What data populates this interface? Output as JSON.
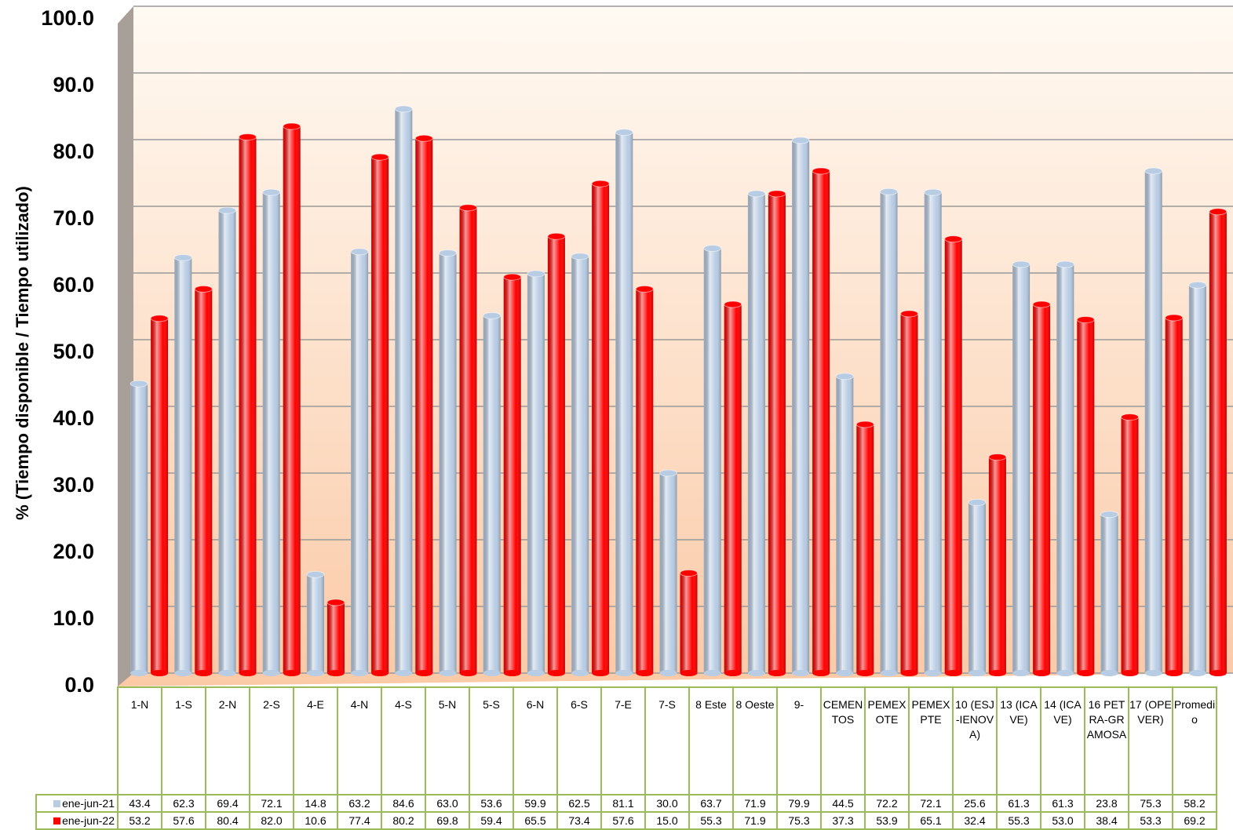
{
  "chart_data": {
    "type": "bar",
    "y_label": "% (Tiempo disponible / Tiempo utilizado)",
    "categories": [
      "1-N",
      "1-S",
      "2-N",
      "2-S",
      "4-E",
      "4-N",
      "4-S",
      "5-N",
      "5-S",
      "6-N",
      "6-S",
      "7-E",
      "7-S",
      "8 Este",
      "8 Oeste",
      "9-",
      "CEMENTOS",
      "PEMEX OTE",
      "PEMEX PTE",
      "10 (ESJ-IENOVA)",
      "13 (ICAVE)",
      "14 (ICAVE)",
      "16 PETRA-GRAMOSA",
      "17 (OPEVER)",
      "Promedio"
    ],
    "series": [
      {
        "name": "ene-jun-21",
        "color": "#b8cce4",
        "values": [
          43.4,
          62.3,
          69.4,
          72.1,
          14.8,
          63.2,
          84.6,
          63.0,
          53.6,
          59.9,
          62.5,
          81.1,
          30.0,
          63.7,
          71.9,
          79.9,
          44.5,
          72.2,
          72.1,
          25.6,
          61.3,
          61.3,
          23.8,
          75.3,
          58.2
        ],
        "value_labels": [
          "43.4",
          "62.3",
          "69.4",
          "72.1",
          "14.8",
          "63.2",
          "84.6",
          "63.0",
          "53.6",
          "59.9",
          "62.5",
          "81.1",
          "30.0",
          "63.7",
          "71.9",
          "79.9",
          "44.5",
          "72.2",
          "72.1",
          "25.6",
          "61.3",
          "61.3",
          "23.8",
          "75.3",
          "58.2"
        ]
      },
      {
        "name": "ene-jun-22",
        "color": "#ff0000",
        "values": [
          53.2,
          57.6,
          80.4,
          82.0,
          10.6,
          77.4,
          80.2,
          69.8,
          59.4,
          65.5,
          73.4,
          57.6,
          15.0,
          55.3,
          71.9,
          75.3,
          37.3,
          53.9,
          65.1,
          32.4,
          55.3,
          53.0,
          38.4,
          53.3,
          69.2
        ],
        "value_labels": [
          "53.2",
          "57.6",
          "80.4",
          "82.0",
          "10.6",
          "77.4",
          "80.2",
          "69.8",
          "59.4",
          "65.5",
          "73.4",
          "57.6",
          "15.0",
          "55.3",
          "71.9",
          "75.3",
          "37.3",
          "53.9",
          "65.1",
          "32.4",
          "55.3",
          "53.0",
          "38.4",
          "53.3",
          "69.2"
        ]
      }
    ],
    "ylim": [
      0,
      100
    ],
    "yticks": [
      {
        "value": 0,
        "label": "0.0"
      },
      {
        "value": 10,
        "label": "10.0"
      },
      {
        "value": 20,
        "label": "20.0"
      },
      {
        "value": 30,
        "label": "30.0"
      },
      {
        "value": 40,
        "label": "40.0"
      },
      {
        "value": 50,
        "label": "50.0"
      },
      {
        "value": 60,
        "label": "60.0"
      },
      {
        "value": 70,
        "label": "70.0"
      },
      {
        "value": 80,
        "label": "80.0"
      },
      {
        "value": 90,
        "label": "90.0"
      },
      {
        "value": 100,
        "label": "100.0"
      }
    ],
    "grid": true
  }
}
